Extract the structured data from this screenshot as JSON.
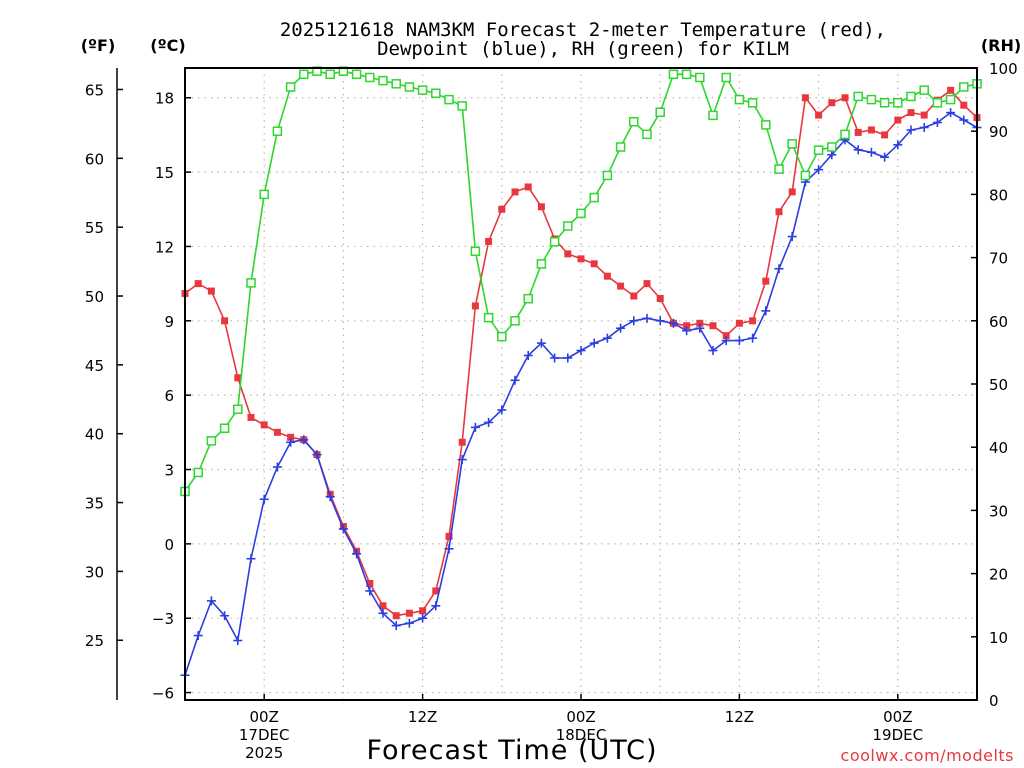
{
  "chart_data": {
    "type": "line",
    "title_line1": "2025121618 NAM3KM Forecast 2-meter Temperature (red),",
    "title_line2": "Dewpoint (blue), RH (green) for KILM",
    "unit_f": "(ºF)",
    "unit_c": "(ºC)",
    "unit_rh": "(RH)",
    "xlabel": "Forecast Time (UTC)",
    "credit": "coolwx.com/modelts",
    "x_range_hours": [
      -6,
      54
    ],
    "c_range": [
      -6.3,
      19.2
    ],
    "rh_range": [
      0,
      100
    ],
    "c_ticks": [
      -6,
      -3,
      0,
      3,
      6,
      9,
      12,
      15,
      18
    ],
    "c_tick_labels": [
      "−6",
      "−3",
      "0",
      "3",
      "6",
      "9",
      "12",
      "15",
      "18"
    ],
    "f_ticks": [
      25,
      30,
      35,
      40,
      45,
      50,
      55,
      60,
      65
    ],
    "f_tick_labels": [
      "25",
      "30",
      "35",
      "40",
      "45",
      "50",
      "55",
      "60",
      "65"
    ],
    "rh_ticks": [
      0,
      10,
      20,
      30,
      40,
      50,
      60,
      70,
      80,
      90,
      100
    ],
    "rh_tick_labels": [
      "0",
      "10",
      "20",
      "30",
      "40",
      "50",
      "60",
      "70",
      "80",
      "90",
      "100"
    ],
    "x_ticks": [
      {
        "hour": 0,
        "lines": [
          "00Z",
          "17DEC",
          "2025"
        ]
      },
      {
        "hour": 12,
        "lines": [
          "12Z"
        ]
      },
      {
        "hour": 24,
        "lines": [
          "00Z",
          "18DEC"
        ]
      },
      {
        "hour": 36,
        "lines": [
          "12Z"
        ]
      },
      {
        "hour": 48,
        "lines": [
          "00Z",
          "19DEC"
        ]
      }
    ],
    "series": [
      {
        "name": "Temperature",
        "unit": "C",
        "color": "#e8383f",
        "marker": "filled-square",
        "x": [
          -6,
          -5,
          -4,
          -3,
          -2,
          -1,
          0,
          1,
          2,
          3,
          4,
          5,
          6,
          7,
          8,
          9,
          10,
          11,
          12,
          13,
          14,
          15,
          16,
          17,
          18,
          19,
          20,
          21,
          22,
          23,
          24,
          25,
          26,
          27,
          28,
          29,
          30,
          31,
          32,
          33,
          34,
          35,
          36,
          37,
          38,
          39,
          40,
          41,
          42,
          43,
          44,
          45,
          46,
          47,
          48,
          49,
          50,
          51,
          52,
          53,
          54
        ],
        "values": [
          10.1,
          10.5,
          10.2,
          9.0,
          6.7,
          5.1,
          4.8,
          4.5,
          4.3,
          4.2,
          3.6,
          2.0,
          0.7,
          -0.3,
          -1.6,
          -2.5,
          -2.9,
          -2.8,
          -2.7,
          -1.9,
          0.3,
          4.1,
          9.6,
          12.2,
          13.5,
          14.2,
          14.4,
          13.6,
          12.3,
          11.7,
          11.5,
          11.3,
          10.8,
          10.4,
          10.0,
          10.5,
          9.9,
          8.9,
          8.8,
          8.9,
          8.8,
          8.4,
          8.9,
          9.0,
          10.6,
          13.4,
          14.2,
          18.0,
          17.3,
          17.8,
          18.0,
          16.6,
          16.7,
          16.5,
          17.1,
          17.4,
          17.3,
          17.9,
          18.3,
          17.7,
          17.2
        ]
      },
      {
        "name": "Dewpoint",
        "unit": "C",
        "color": "#2b3fe0",
        "marker": "plus",
        "x": [
          -6,
          -5,
          -4,
          -3,
          -2,
          -1,
          0,
          1,
          2,
          3,
          4,
          5,
          6,
          7,
          8,
          9,
          10,
          11,
          12,
          13,
          14,
          15,
          16,
          17,
          18,
          19,
          20,
          21,
          22,
          23,
          24,
          25,
          26,
          27,
          28,
          29,
          30,
          31,
          32,
          33,
          34,
          35,
          36,
          37,
          38,
          39,
          40,
          41,
          42,
          43,
          44,
          45,
          46,
          47,
          48,
          49,
          50,
          51,
          52,
          53,
          54
        ],
        "values": [
          -5.3,
          -3.7,
          -2.3,
          -2.9,
          -3.9,
          -0.6,
          1.8,
          3.1,
          4.1,
          4.2,
          3.6,
          1.9,
          0.6,
          -0.4,
          -1.9,
          -2.8,
          -3.3,
          -3.2,
          -3.0,
          -2.5,
          -0.2,
          3.4,
          4.7,
          4.9,
          5.4,
          6.6,
          7.6,
          8.1,
          7.5,
          7.5,
          7.8,
          8.1,
          8.3,
          8.7,
          9.0,
          9.1,
          9.0,
          8.9,
          8.6,
          8.7,
          7.8,
          8.2,
          8.2,
          8.3,
          9.4,
          11.1,
          12.4,
          14.6,
          15.1,
          15.7,
          16.3,
          15.9,
          15.8,
          15.6,
          16.1,
          16.7,
          16.8,
          17.0,
          17.4,
          17.1,
          16.8
        ]
      },
      {
        "name": "RH",
        "unit": "%",
        "color": "#2ed62e",
        "marker": "open-square",
        "x": [
          -6,
          -5,
          -4,
          -3,
          -2,
          -1,
          0,
          1,
          2,
          3,
          4,
          5,
          6,
          7,
          8,
          9,
          10,
          11,
          12,
          13,
          14,
          15,
          16,
          17,
          18,
          19,
          20,
          21,
          22,
          23,
          24,
          25,
          26,
          27,
          28,
          29,
          30,
          31,
          32,
          33,
          34,
          35,
          36,
          37,
          38,
          39,
          40,
          41,
          42,
          43,
          44,
          45,
          46,
          47,
          48,
          49,
          50,
          51,
          52,
          53,
          54
        ],
        "values": [
          33,
          36,
          41,
          43,
          46,
          66,
          80,
          90,
          97,
          99,
          99.5,
          99,
          99.5,
          99,
          98.5,
          98,
          97.5,
          97,
          96.5,
          96,
          95,
          94,
          71,
          60.5,
          57.5,
          60,
          63.5,
          69,
          72.5,
          75,
          77,
          79.5,
          83,
          87.5,
          91.5,
          89.5,
          93,
          99,
          99,
          98.5,
          92.5,
          98.5,
          95,
          94.5,
          91,
          84,
          88,
          83,
          87,
          87.5,
          89.5,
          95.5,
          95,
          94.5,
          94.5,
          95.5,
          96.5,
          94.5,
          95,
          97,
          97.5
        ]
      }
    ]
  }
}
